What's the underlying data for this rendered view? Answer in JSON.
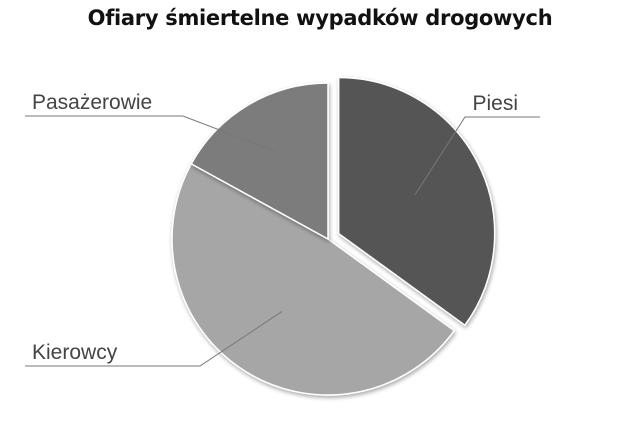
{
  "chart_data": {
    "type": "pie",
    "title": "Ofiary śmiertelne wypadków drogowych",
    "slices": [
      {
        "name": "Piesi",
        "value": 35,
        "color": "#555555",
        "exploded": true
      },
      {
        "name": "Kierowcy",
        "value": 48,
        "color": "#a6a6a6",
        "exploded": false
      },
      {
        "name": "Pasażerowie",
        "value": 17,
        "color": "#7c7c7c",
        "exploded": false
      }
    ],
    "legend": "none",
    "labels": "outside-with-leader-lines"
  }
}
